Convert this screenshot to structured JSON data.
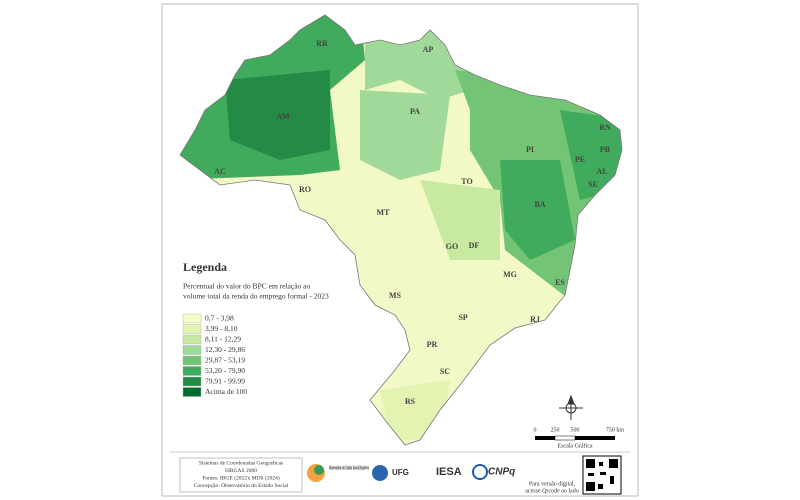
{
  "legend": {
    "title": "Legenda",
    "subtitle_lines": [
      "Percentual do valor do BPC em relação ao",
      "volume total da renda do emprego formal - 2023"
    ],
    "classes": [
      {
        "label": "0,7 - 3,98",
        "color": "#f7fcc8"
      },
      {
        "label": "3,99 - 8,10",
        "color": "#e3f4b0"
      },
      {
        "label": "8,11 - 12,29",
        "color": "#c7e9a0"
      },
      {
        "label": "12,30 - 29,86",
        "color": "#a1d99b"
      },
      {
        "label": "29,87 - 53,19",
        "color": "#74c476"
      },
      {
        "label": "53,20 - 79,90",
        "color": "#41ab5d"
      },
      {
        "label": "79,91 - 99,99",
        "color": "#238b45"
      },
      {
        "label": "Acima de 100",
        "color": "#006d2c"
      }
    ]
  },
  "state_labels": [
    "RR",
    "AP",
    "AM",
    "PA",
    "AC",
    "RO",
    "MT",
    "TO",
    "PI",
    "RN",
    "PB",
    "PE",
    "AL",
    "SE",
    "BA",
    "GO",
    "DF",
    "MG",
    "ES",
    "MS",
    "SP",
    "RJ",
    "PR",
    "SC",
    "RS"
  ],
  "scale": {
    "ticks": [
      "0",
      "250",
      "500",
      "750 km"
    ],
    "caption": "Escala Gráfica"
  },
  "footer": {
    "info_lines": [
      "Sistemas de Coordenadas Geográficas",
      "SIRGAS 2000",
      "Fontes: IBGE (2022); MDS (2024)",
      "Concepção: Observatório do Estado Social"
    ],
    "logos": [
      "Observatório do Estado Social Brasileiro",
      "UFG",
      "IESA",
      "CNPq"
    ],
    "qr_caption_lines": [
      "Para versão digital,",
      "acesse Qrcode ao lado"
    ]
  }
}
